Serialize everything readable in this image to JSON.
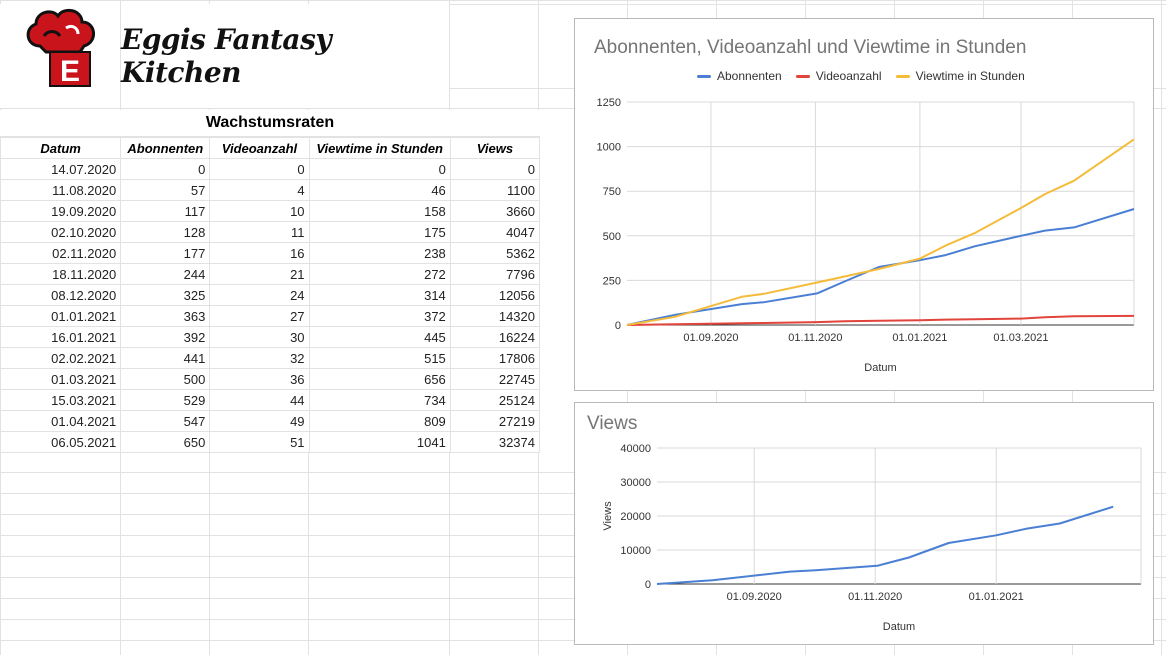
{
  "brand": {
    "title": "Eggis Fantasy Kitchen",
    "logo_letter": "E"
  },
  "table": {
    "title": "Wachstumsraten",
    "headers": [
      "Datum",
      "Abonnenten",
      "Videoanzahl",
      "Viewtime in Stunden",
      "Views"
    ],
    "rows": [
      [
        "14.07.2020",
        "0",
        "0",
        "0",
        "0"
      ],
      [
        "11.08.2020",
        "57",
        "4",
        "46",
        "1100"
      ],
      [
        "19.09.2020",
        "117",
        "10",
        "158",
        "3660"
      ],
      [
        "02.10.2020",
        "128",
        "11",
        "175",
        "4047"
      ],
      [
        "02.11.2020",
        "177",
        "16",
        "238",
        "5362"
      ],
      [
        "18.11.2020",
        "244",
        "21",
        "272",
        "7796"
      ],
      [
        "08.12.2020",
        "325",
        "24",
        "314",
        "12056"
      ],
      [
        "01.01.2021",
        "363",
        "27",
        "372",
        "14320"
      ],
      [
        "16.01.2021",
        "392",
        "30",
        "445",
        "16224"
      ],
      [
        "02.02.2021",
        "441",
        "32",
        "515",
        "17806"
      ],
      [
        "01.03.2021",
        "500",
        "36",
        "656",
        "22745"
      ],
      [
        "15.03.2021",
        "529",
        "44",
        "734",
        "25124"
      ],
      [
        "01.04.2021",
        "547",
        "49",
        "809",
        "27219"
      ],
      [
        "06.05.2021",
        "650",
        "51",
        "1041",
        "32374"
      ]
    ]
  },
  "colors": {
    "blue": "#4a7fd4",
    "red": "#e0443a",
    "yellow": "#f4bc3a"
  },
  "chart_data": [
    {
      "type": "line",
      "title": "Abonnenten, Videoanzahl und Viewtime in Stunden",
      "xlabel": "Datum",
      "ylabel": "",
      "ylim": [
        0,
        1250
      ],
      "yticks": [
        "0",
        "250",
        "500",
        "750",
        "1000",
        "1250"
      ],
      "xlim": [
        "2020-07-14",
        "2021-05-06"
      ],
      "xticks": [
        {
          "date": "2020-09-01",
          "label": "01.09.2020"
        },
        {
          "date": "2020-11-01",
          "label": "01.11.2020"
        },
        {
          "date": "2021-01-01",
          "label": "01.01.2021"
        },
        {
          "date": "2021-03-01",
          "label": "01.03.2021"
        }
      ],
      "legend_position": "top",
      "grid": true,
      "x": [
        "2020-07-14",
        "2020-08-11",
        "2020-09-19",
        "2020-10-02",
        "2020-11-02",
        "2020-11-18",
        "2020-12-08",
        "2021-01-01",
        "2021-01-16",
        "2021-02-02",
        "2021-03-01",
        "2021-03-15",
        "2021-04-01",
        "2021-05-06"
      ],
      "series": [
        {
          "name": "Abonnenten",
          "color": "#4a7fd4",
          "values": [
            0,
            57,
            117,
            128,
            177,
            244,
            325,
            363,
            392,
            441,
            500,
            529,
            547,
            650
          ]
        },
        {
          "name": "Videoanzahl",
          "color": "#e0443a",
          "values": [
            0,
            4,
            10,
            11,
            16,
            21,
            24,
            27,
            30,
            32,
            36,
            44,
            49,
            51
          ]
        },
        {
          "name": "Viewtime in Stunden",
          "color": "#f4bc3a",
          "values": [
            0,
            46,
            158,
            175,
            238,
            272,
            314,
            372,
            445,
            515,
            656,
            734,
            809,
            1041
          ]
        }
      ]
    },
    {
      "type": "line",
      "title": "Views",
      "xlabel": "Datum",
      "ylabel": "Views",
      "ylim": [
        0,
        40000
      ],
      "yticks": [
        "0",
        "10000",
        "20000",
        "30000",
        "40000"
      ],
      "xlim": [
        "2020-07-14",
        "2021-03-15"
      ],
      "xticks": [
        {
          "date": "2020-09-01",
          "label": "01.09.2020"
        },
        {
          "date": "2020-11-01",
          "label": "01.11.2020"
        },
        {
          "date": "2021-01-01",
          "label": "01.01.2021"
        }
      ],
      "grid": true,
      "x": [
        "2020-07-14",
        "2020-08-11",
        "2020-09-19",
        "2020-10-02",
        "2020-11-02",
        "2020-11-18",
        "2020-12-08",
        "2021-01-01",
        "2021-01-16",
        "2021-02-02",
        "2021-03-01"
      ],
      "series": [
        {
          "name": "Views",
          "color": "#4a7fd4",
          "values": [
            0,
            1100,
            3660,
            4047,
            5362,
            7796,
            12056,
            14320,
            16224,
            17806,
            22745
          ]
        }
      ]
    }
  ]
}
